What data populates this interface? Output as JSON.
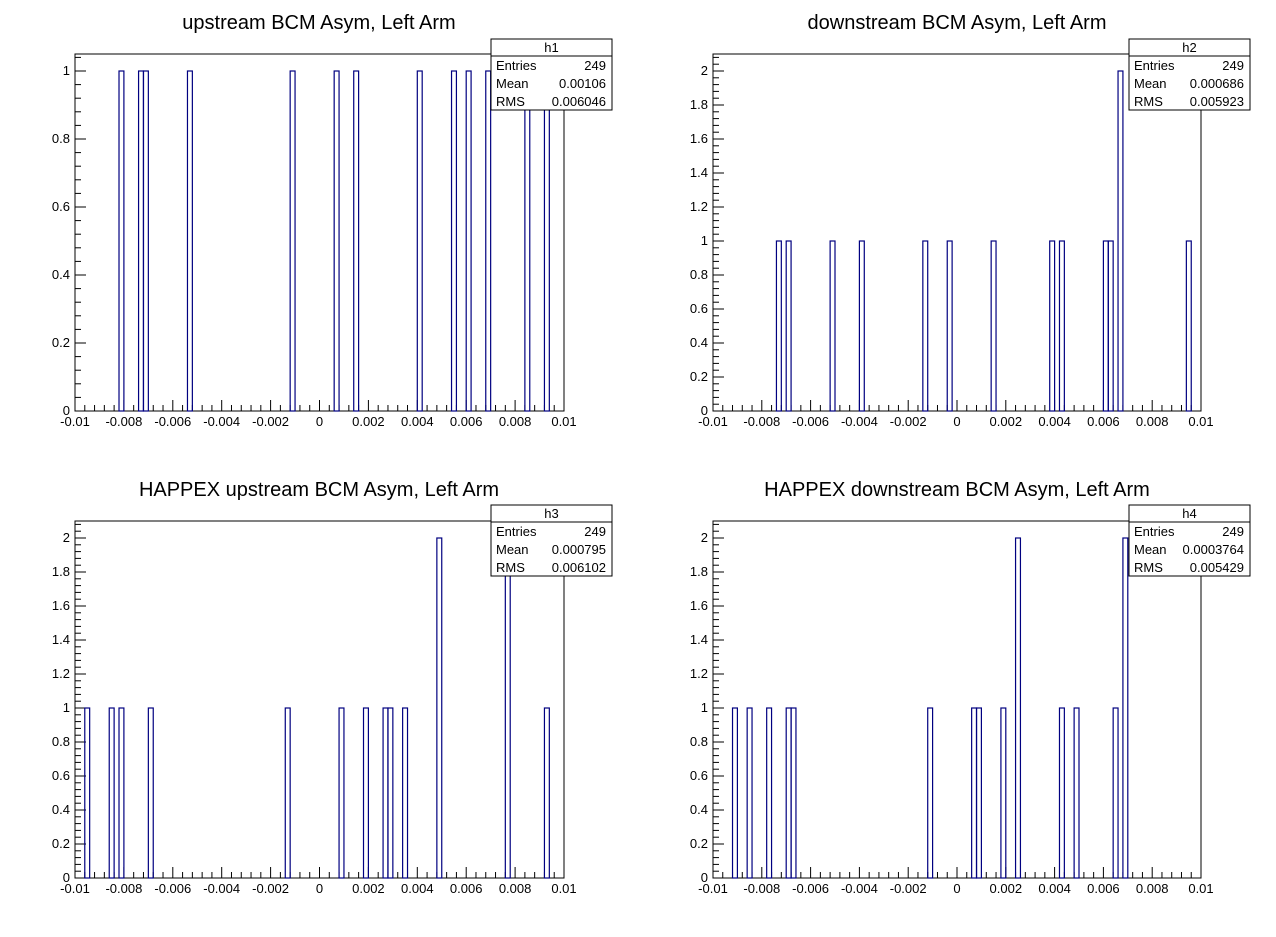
{
  "chart_data": [
    {
      "type": "histogram",
      "title": "upstream BCM Asym, Left Arm",
      "stats": {
        "name": "h1",
        "entries_label": "Entries",
        "entries": "249",
        "mean_label": "Mean",
        "mean": "0.00106",
        "rms_label": "RMS",
        "rms": "0.006046"
      },
      "xlim": [
        -0.01,
        0.01
      ],
      "ylim": [
        0,
        1.05
      ],
      "xticks": [
        -0.01,
        -0.008,
        -0.006,
        -0.004,
        -0.002,
        0,
        0.002,
        0.004,
        0.006,
        0.008,
        0.01
      ],
      "xtick_labels": [
        "-0.01",
        "-0.008",
        "-0.006",
        "-0.004",
        "-0.002",
        "0",
        "0.002",
        "0.004",
        "0.006",
        "0.008",
        "0.01"
      ],
      "yticks": [
        0,
        0.2,
        0.4,
        0.6,
        0.8,
        1
      ],
      "ytick_labels": [
        "0",
        "0.2",
        "0.4",
        "0.6",
        "0.8",
        "1"
      ],
      "bin_width": 0.0002,
      "bins": [
        {
          "x": -0.0082,
          "y": 1
        },
        {
          "x": -0.0074,
          "y": 1
        },
        {
          "x": -0.0072,
          "y": 1
        },
        {
          "x": -0.0054,
          "y": 1
        },
        {
          "x": -0.0012,
          "y": 1
        },
        {
          "x": 0.0006,
          "y": 1
        },
        {
          "x": 0.0014,
          "y": 1
        },
        {
          "x": 0.004,
          "y": 1
        },
        {
          "x": 0.0054,
          "y": 1
        },
        {
          "x": 0.006,
          "y": 1
        },
        {
          "x": 0.0068,
          "y": 1
        },
        {
          "x": 0.0084,
          "y": 1
        },
        {
          "x": 0.0092,
          "y": 1
        }
      ]
    },
    {
      "type": "histogram",
      "title": "downstream BCM Asym, Left Arm",
      "stats": {
        "name": "h2",
        "entries_label": "Entries",
        "entries": "249",
        "mean_label": "Mean",
        "mean": "0.000686",
        "rms_label": "RMS",
        "rms": "0.005923"
      },
      "xlim": [
        -0.01,
        0.01
      ],
      "ylim": [
        0,
        2.1
      ],
      "xticks": [
        -0.01,
        -0.008,
        -0.006,
        -0.004,
        -0.002,
        0,
        0.002,
        0.004,
        0.006,
        0.008,
        0.01
      ],
      "xtick_labels": [
        "-0.01",
        "-0.008",
        "-0.006",
        "-0.004",
        "-0.002",
        "0",
        "0.002",
        "0.004",
        "0.006",
        "0.008",
        "0.01"
      ],
      "yticks": [
        0,
        0.2,
        0.4,
        0.6,
        0.8,
        1,
        1.2,
        1.4,
        1.6,
        1.8,
        2
      ],
      "ytick_labels": [
        "0",
        "0.2",
        "0.4",
        "0.6",
        "0.8",
        "1",
        "1.2",
        "1.4",
        "1.6",
        "1.8",
        "2"
      ],
      "bin_width": 0.0002,
      "bins": [
        {
          "x": -0.0074,
          "y": 1
        },
        {
          "x": -0.007,
          "y": 1
        },
        {
          "x": -0.0052,
          "y": 1
        },
        {
          "x": -0.004,
          "y": 1
        },
        {
          "x": -0.0014,
          "y": 1
        },
        {
          "x": -0.0004,
          "y": 1
        },
        {
          "x": 0.0014,
          "y": 1
        },
        {
          "x": 0.0038,
          "y": 1
        },
        {
          "x": 0.0042,
          "y": 1
        },
        {
          "x": 0.006,
          "y": 1
        },
        {
          "x": 0.0062,
          "y": 1
        },
        {
          "x": 0.0066,
          "y": 2
        },
        {
          "x": 0.0094,
          "y": 1
        }
      ]
    },
    {
      "type": "histogram",
      "title": "HAPPEX upstream BCM Asym, Left Arm",
      "stats": {
        "name": "h3",
        "entries_label": "Entries",
        "entries": "249",
        "mean_label": "Mean",
        "mean": "0.000795",
        "rms_label": "RMS",
        "rms": "0.006102"
      },
      "xlim": [
        -0.01,
        0.01
      ],
      "ylim": [
        0,
        2.1
      ],
      "xticks": [
        -0.01,
        -0.008,
        -0.006,
        -0.004,
        -0.002,
        0,
        0.002,
        0.004,
        0.006,
        0.008,
        0.01
      ],
      "xtick_labels": [
        "-0.01",
        "-0.008",
        "-0.006",
        "-0.004",
        "-0.002",
        "0",
        "0.002",
        "0.004",
        "0.006",
        "0.008",
        "0.01"
      ],
      "yticks": [
        0,
        0.2,
        0.4,
        0.6,
        0.8,
        1,
        1.2,
        1.4,
        1.6,
        1.8,
        2
      ],
      "ytick_labels": [
        "0",
        "0.2",
        "0.4",
        "0.6",
        "0.8",
        "1",
        "1.2",
        "1.4",
        "1.6",
        "1.8",
        "2"
      ],
      "bin_width": 0.0002,
      "bins": [
        {
          "x": -0.0096,
          "y": 1
        },
        {
          "x": -0.0086,
          "y": 1
        },
        {
          "x": -0.0082,
          "y": 1
        },
        {
          "x": -0.007,
          "y": 1
        },
        {
          "x": -0.0014,
          "y": 1
        },
        {
          "x": 0.0008,
          "y": 1
        },
        {
          "x": 0.0018,
          "y": 1
        },
        {
          "x": 0.0026,
          "y": 1
        },
        {
          "x": 0.0028,
          "y": 1
        },
        {
          "x": 0.0034,
          "y": 1
        },
        {
          "x": 0.0048,
          "y": 2
        },
        {
          "x": 0.0076,
          "y": 2
        },
        {
          "x": 0.0092,
          "y": 1
        }
      ]
    },
    {
      "type": "histogram",
      "title": "HAPPEX downstream BCM Asym, Left Arm",
      "stats": {
        "name": "h4",
        "entries_label": "Entries",
        "entries": "249",
        "mean_label": "Mean",
        "mean": "0.0003764",
        "rms_label": "RMS",
        "rms": "0.005429"
      },
      "xlim": [
        -0.01,
        0.01
      ],
      "ylim": [
        0,
        2.1
      ],
      "xticks": [
        -0.01,
        -0.008,
        -0.006,
        -0.004,
        -0.002,
        0,
        0.002,
        0.004,
        0.006,
        0.008,
        0.01
      ],
      "xtick_labels": [
        "-0.01",
        "-0.008",
        "-0.006",
        "-0.004",
        "-0.002",
        "0",
        "0.002",
        "0.004",
        "0.006",
        "0.008",
        "0.01"
      ],
      "yticks": [
        0,
        0.2,
        0.4,
        0.6,
        0.8,
        1,
        1.2,
        1.4,
        1.6,
        1.8,
        2
      ],
      "ytick_labels": [
        "0",
        "0.2",
        "0.4",
        "0.6",
        "0.8",
        "1",
        "1.2",
        "1.4",
        "1.6",
        "1.8",
        "2"
      ],
      "bin_width": 0.0002,
      "bins": [
        {
          "x": -0.0092,
          "y": 1
        },
        {
          "x": -0.0086,
          "y": 1
        },
        {
          "x": -0.0078,
          "y": 1
        },
        {
          "x": -0.007,
          "y": 1
        },
        {
          "x": -0.0068,
          "y": 1
        },
        {
          "x": -0.0012,
          "y": 1
        },
        {
          "x": 0.0006,
          "y": 1
        },
        {
          "x": 0.0008,
          "y": 1
        },
        {
          "x": 0.0018,
          "y": 1
        },
        {
          "x": 0.0024,
          "y": 2
        },
        {
          "x": 0.0042,
          "y": 1
        },
        {
          "x": 0.0048,
          "y": 1
        },
        {
          "x": 0.0064,
          "y": 1
        },
        {
          "x": 0.0068,
          "y": 2
        }
      ]
    }
  ]
}
